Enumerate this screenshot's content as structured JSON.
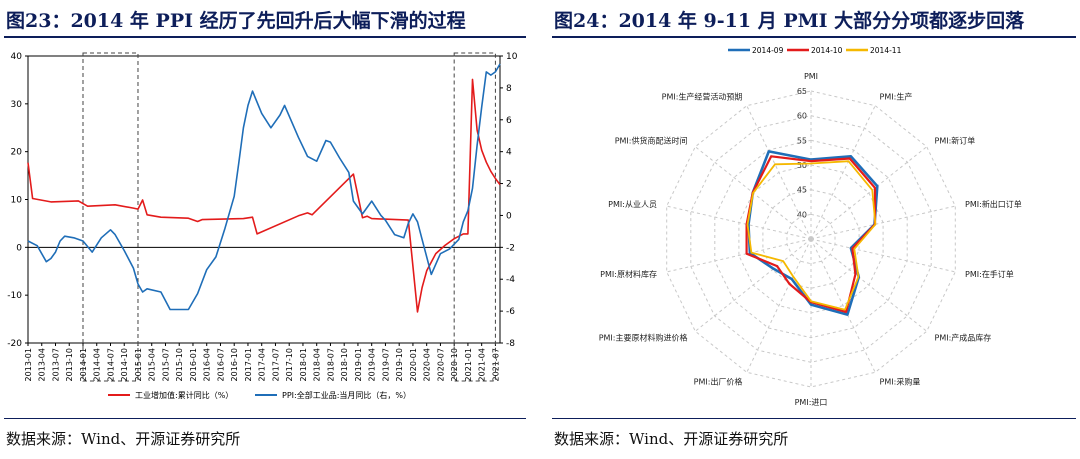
{
  "left": {
    "title": "图23：2014 年 PPI 经历了先回升后大幅下滑的过程",
    "source": "数据来源：Wind、开源证券研究所",
    "chart_data": {
      "type": "line",
      "x_ticks": [
        "2013-01",
        "2013-04",
        "2013-07",
        "2013-10",
        "2014-01",
        "2014-04",
        "2014-07",
        "2014-10",
        "2015-01",
        "2015-04",
        "2015-07",
        "2015-10",
        "2016-01",
        "2016-04",
        "2016-07",
        "2016-10",
        "2017-01",
        "2017-04",
        "2017-07",
        "2017-10",
        "2018-01",
        "2018-04",
        "2018-07",
        "2018-10",
        "2019-01",
        "2019-04",
        "2019-07",
        "2019-10",
        "2020-01",
        "2020-04",
        "2020-07",
        "2020-10",
        "2021-01",
        "2021-04",
        "2021-07"
      ],
      "y_left": {
        "lim": [
          -20,
          40
        ],
        "ticks": [
          "40",
          "30",
          "20",
          "10",
          "0",
          "-10",
          "-20"
        ]
      },
      "y_right": {
        "lim": [
          -8,
          10
        ],
        "ticks": [
          "10",
          "8",
          "6",
          "4",
          "2",
          "0",
          "-2",
          "-4",
          "-6",
          "-8"
        ]
      },
      "highlight_ranges": [
        [
          "2014-01",
          "2015-01"
        ],
        [
          "2020-10",
          "2021-07"
        ]
      ],
      "series": [
        {
          "name": "工业增加值:累计同比（%）",
          "axis": "left",
          "color": "#e31b1b",
          "x": [
            "2013-01",
            "2013-02",
            "2013-06",
            "2013-12",
            "2014-02",
            "2014-08",
            "2014-12",
            "2015-01",
            "2015-02",
            "2015-03",
            "2015-06",
            "2015-12",
            "2016-02",
            "2016-03",
            "2016-12",
            "2017-02",
            "2017-03",
            "2017-12",
            "2018-02",
            "2018-03",
            "2018-12",
            "2019-02",
            "2019-03",
            "2019-04",
            "2019-12",
            "2020-02",
            "2020-03",
            "2020-04",
            "2020-06",
            "2020-08",
            "2020-10",
            "2020-12",
            "2021-01",
            "2021-02",
            "2021-03",
            "2021-04",
            "2021-05",
            "2021-06",
            "2021-07",
            "2021-08"
          ],
          "values": [
            17.7,
            10.2,
            9.5,
            9.7,
            8.6,
            8.9,
            8.2,
            8.0,
            9.9,
            6.8,
            6.3,
            6.1,
            5.4,
            5.8,
            6.0,
            6.3,
            2.8,
            6.6,
            7.2,
            6.8,
            15.3,
            6.2,
            6.5,
            6.0,
            5.7,
            -13.5,
            -8.4,
            -4.9,
            -1.3,
            0.4,
            1.8,
            2.8,
            2.8,
            35.1,
            24.5,
            20.3,
            17.8,
            15.9,
            14.4,
            13.1
          ]
        },
        {
          "name": "PPI:全部工业品:当月同比（右，%）",
          "axis": "right",
          "color": "#1f6eb8",
          "x": [
            "2013-01",
            "2013-03",
            "2013-05",
            "2013-06",
            "2013-07",
            "2013-08",
            "2013-09",
            "2013-11",
            "2014-01",
            "2014-03",
            "2014-05",
            "2014-07",
            "2014-08",
            "2014-10",
            "2014-12",
            "2015-01",
            "2015-02",
            "2015-03",
            "2015-06",
            "2015-08",
            "2015-09",
            "2015-10",
            "2015-12",
            "2016-02",
            "2016-04",
            "2016-06",
            "2016-08",
            "2016-10",
            "2016-11",
            "2016-12",
            "2017-01",
            "2017-02",
            "2017-04",
            "2017-06",
            "2017-08",
            "2017-09",
            "2017-12",
            "2018-02",
            "2018-04",
            "2018-06",
            "2018-07",
            "2018-09",
            "2018-11",
            "2018-12",
            "2019-02",
            "2019-04",
            "2019-06",
            "2019-07",
            "2019-09",
            "2019-11",
            "2019-12",
            "2020-01",
            "2020-02",
            "2020-03",
            "2020-05",
            "2020-07",
            "2020-09",
            "2020-11",
            "2020-12",
            "2021-01",
            "2021-02",
            "2021-03",
            "2021-04",
            "2021-05",
            "2021-06",
            "2021-07",
            "2021-08"
          ],
          "values": [
            -1.6,
            -1.9,
            -2.9,
            -2.7,
            -2.3,
            -1.6,
            -1.3,
            -1.4,
            -1.6,
            -2.3,
            -1.4,
            -0.9,
            -1.2,
            -2.2,
            -3.3,
            -4.3,
            -4.8,
            -4.6,
            -4.8,
            -5.9,
            -5.9,
            -5.9,
            -5.9,
            -4.9,
            -3.4,
            -2.6,
            -0.8,
            1.2,
            3.3,
            5.5,
            6.9,
            7.8,
            6.4,
            5.5,
            6.3,
            6.9,
            4.9,
            3.7,
            3.4,
            4.7,
            4.6,
            3.6,
            2.7,
            0.9,
            0.1,
            0.9,
            0.0,
            -0.3,
            -1.2,
            -1.4,
            -0.5,
            0.1,
            -0.4,
            -1.5,
            -3.7,
            -2.4,
            -2.1,
            -1.5,
            -0.4,
            0.3,
            1.7,
            4.4,
            6.8,
            9.0,
            8.8,
            9.0,
            9.5
          ]
        }
      ]
    }
  },
  "right": {
    "title": "图24：2014 年 9-11 月 PMI 大部分分项都逐步回落",
    "source": "数据来源：Wind、开源证券研究所",
    "chart_data": {
      "type": "radar",
      "axes": [
        "PMI",
        "PMI:生产",
        "PMI:新订单",
        "PMI:新出口订单",
        "PMI:在手订单",
        "PMI:产成品库存",
        "PMI:采购量",
        "PMI:进口",
        "PMI:出厂价格",
        "PMI:主要原材料购进价格",
        "PMI:原材料库存",
        "PMI:从业人员",
        "PMI:供货商配送时间",
        "PMI:生产经营活动预期"
      ],
      "radial_lim": [
        35,
        65
      ],
      "radial_ticks": [
        "40",
        "45",
        "50",
        "55",
        "60",
        "65"
      ],
      "series": [
        {
          "name": "2014-09",
          "color": "#1f6eb8",
          "values": [
            51.1,
            53.6,
            52.2,
            48.2,
            43.3,
            47.4,
            52.0,
            48.3,
            44.0,
            44.7,
            47.7,
            48.0,
            50.1,
            54.7
          ]
        },
        {
          "name": "2014-10",
          "color": "#e31b1b",
          "values": [
            50.8,
            53.1,
            51.6,
            48.3,
            43.6,
            46.5,
            51.4,
            47.8,
            45.1,
            43.8,
            48.4,
            48.4,
            50.1,
            53.6
          ]
        },
        {
          "name": "2014-11",
          "color": "#f5b800",
          "values": [
            50.3,
            52.5,
            50.9,
            48.4,
            44.0,
            47.3,
            50.9,
            47.6,
            43.4,
            42.2,
            47.4,
            48.2,
            50.0,
            51.8
          ]
        }
      ]
    }
  }
}
